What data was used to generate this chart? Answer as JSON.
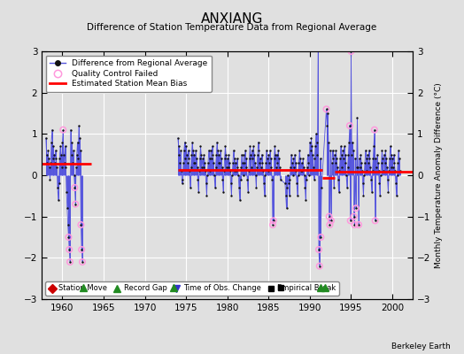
{
  "title": "ANXIANG",
  "subtitle": "Difference of Station Temperature Data from Regional Average",
  "ylabel": "Monthly Temperature Anomaly Difference (°C)",
  "xlim": [
    1957.5,
    2002.5
  ],
  "ylim": [
    -3.0,
    3.0
  ],
  "xticks": [
    1960,
    1965,
    1970,
    1975,
    1980,
    1985,
    1990,
    1995,
    2000
  ],
  "yticks": [
    -3,
    -2,
    -1,
    0,
    1,
    2,
    3
  ],
  "background_color": "#e0e0e0",
  "plot_background": "#e0e0e0",
  "grid_color": "#ffffff",
  "line_color": "#5555dd",
  "bias_color": "#ff0000",
  "marker_color": "#111111",
  "qc_color": "#ff99dd",
  "watermark": "Berkeley Earth",
  "segment_biases": [
    {
      "x_start": 1957.5,
      "x_end": 1963.5,
      "bias": 0.27
    },
    {
      "x_start": 1974.0,
      "x_end": 1991.5,
      "bias": 0.13
    },
    {
      "x_start": 1991.5,
      "x_end": 1993.0,
      "bias": -0.07
    },
    {
      "x_start": 1993.0,
      "x_end": 2002.5,
      "bias": 0.08
    }
  ],
  "record_gaps": [
    1962.5,
    1973.5,
    1991.3,
    1991.8
  ],
  "empirical_breaks": [
    1986.5
  ],
  "station_moves": [],
  "obs_changes": [],
  "segments": [
    [
      [
        1958.0,
        0.9
      ],
      [
        1958.083,
        0.5
      ],
      [
        1958.167,
        0.3
      ],
      [
        1958.25,
        0.6
      ],
      [
        1958.333,
        0.4
      ],
      [
        1958.417,
        0.2
      ],
      [
        1958.5,
        -0.1
      ],
      [
        1958.583,
        0.3
      ],
      [
        1958.667,
        0.8
      ],
      [
        1958.75,
        1.1
      ],
      [
        1958.833,
        0.7
      ],
      [
        1958.917,
        0.4
      ],
      [
        1959.0,
        0.5
      ],
      [
        1959.083,
        0.3
      ],
      [
        1959.167,
        0.6
      ],
      [
        1959.25,
        0.4
      ],
      [
        1959.333,
        0.2
      ],
      [
        1959.417,
        -0.3
      ],
      [
        1959.5,
        -0.6
      ],
      [
        1959.583,
        -0.2
      ],
      [
        1959.667,
        0.4
      ],
      [
        1959.75,
        0.7
      ],
      [
        1959.833,
        0.5
      ],
      [
        1959.917,
        0.2
      ],
      [
        1960.0,
        0.8
      ],
      [
        1960.083,
        1.1
      ],
      [
        1960.167,
        0.5
      ],
      [
        1960.25,
        0.3
      ],
      [
        1960.333,
        0.7
      ],
      [
        1960.417,
        0.2
      ],
      [
        1960.5,
        -0.4
      ],
      [
        1960.583,
        -0.8
      ],
      [
        1960.667,
        -1.2
      ],
      [
        1960.75,
        -1.5
      ],
      [
        1960.833,
        -1.8
      ],
      [
        1960.917,
        -2.1
      ],
      [
        1961.0,
        1.1
      ],
      [
        1961.083,
        0.8
      ],
      [
        1961.167,
        0.5
      ],
      [
        1961.25,
        0.3
      ],
      [
        1961.333,
        0.6
      ],
      [
        1961.417,
        0.0
      ],
      [
        1961.5,
        -0.3
      ],
      [
        1961.583,
        -0.7
      ],
      [
        1961.667,
        0.2
      ],
      [
        1961.75,
        0.5
      ],
      [
        1961.833,
        0.8
      ],
      [
        1961.917,
        0.4
      ],
      [
        1962.0,
        1.2
      ],
      [
        1962.083,
        0.9
      ],
      [
        1962.167,
        0.6
      ],
      [
        1962.25,
        -1.2
      ],
      [
        1962.333,
        -1.8
      ],
      [
        1962.417,
        -2.1
      ]
    ],
    [
      [
        1974.0,
        0.9
      ],
      [
        1974.083,
        0.7
      ],
      [
        1974.167,
        0.5
      ],
      [
        1974.25,
        0.3
      ],
      [
        1974.333,
        0.6
      ],
      [
        1974.417,
        0.1
      ],
      [
        1974.5,
        -0.2
      ],
      [
        1974.583,
        -0.1
      ],
      [
        1974.667,
        0.3
      ],
      [
        1974.75,
        0.6
      ],
      [
        1974.833,
        0.8
      ],
      [
        1974.917,
        0.4
      ],
      [
        1975.0,
        0.7
      ],
      [
        1975.083,
        0.5
      ],
      [
        1975.167,
        0.3
      ],
      [
        1975.25,
        0.6
      ],
      [
        1975.333,
        0.4
      ],
      [
        1975.417,
        0.1
      ],
      [
        1975.5,
        -0.3
      ],
      [
        1975.583,
        0.2
      ],
      [
        1975.667,
        0.5
      ],
      [
        1975.75,
        0.8
      ],
      [
        1975.833,
        0.6
      ],
      [
        1975.917,
        0.3
      ],
      [
        1976.0,
        0.5
      ],
      [
        1976.083,
        0.3
      ],
      [
        1976.167,
        0.6
      ],
      [
        1976.25,
        0.4
      ],
      [
        1976.333,
        0.2
      ],
      [
        1976.417,
        -0.1
      ],
      [
        1976.5,
        -0.4
      ],
      [
        1976.583,
        0.1
      ],
      [
        1976.667,
        0.4
      ],
      [
        1976.75,
        0.7
      ],
      [
        1976.833,
        0.5
      ],
      [
        1976.917,
        0.2
      ],
      [
        1977.0,
        0.4
      ],
      [
        1977.083,
        0.2
      ],
      [
        1977.167,
        0.5
      ],
      [
        1977.25,
        0.3
      ],
      [
        1977.333,
        0.1
      ],
      [
        1977.417,
        -0.2
      ],
      [
        1977.5,
        -0.5
      ],
      [
        1977.583,
        0.0
      ],
      [
        1977.667,
        0.3
      ],
      [
        1977.75,
        0.6
      ],
      [
        1977.833,
        0.4
      ],
      [
        1977.917,
        0.1
      ],
      [
        1978.0,
        0.6
      ],
      [
        1978.083,
        0.4
      ],
      [
        1978.167,
        0.7
      ],
      [
        1978.25,
        0.5
      ],
      [
        1978.333,
        0.3
      ],
      [
        1978.417,
        0.0
      ],
      [
        1978.5,
        -0.3
      ],
      [
        1978.583,
        0.2
      ],
      [
        1978.667,
        0.5
      ],
      [
        1978.75,
        0.8
      ],
      [
        1978.833,
        0.6
      ],
      [
        1978.917,
        0.3
      ],
      [
        1979.0,
        0.5
      ],
      [
        1979.083,
        0.3
      ],
      [
        1979.167,
        0.6
      ],
      [
        1979.25,
        0.4
      ],
      [
        1979.333,
        0.2
      ],
      [
        1979.417,
        -0.1
      ],
      [
        1979.5,
        -0.4
      ],
      [
        1979.583,
        0.1
      ],
      [
        1979.667,
        0.4
      ],
      [
        1979.75,
        0.7
      ],
      [
        1979.833,
        0.5
      ],
      [
        1979.917,
        0.2
      ],
      [
        1980.0,
        0.4
      ],
      [
        1980.083,
        0.2
      ],
      [
        1980.167,
        0.5
      ],
      [
        1980.25,
        0.3
      ],
      [
        1980.333,
        0.1
      ],
      [
        1980.417,
        -0.2
      ],
      [
        1980.5,
        -0.5
      ],
      [
        1980.583,
        0.0
      ],
      [
        1980.667,
        0.3
      ],
      [
        1980.75,
        0.6
      ],
      [
        1980.833,
        0.4
      ],
      [
        1980.917,
        0.1
      ],
      [
        1981.0,
        0.3
      ],
      [
        1981.083,
        0.1
      ],
      [
        1981.167,
        0.4
      ],
      [
        1981.25,
        0.2
      ],
      [
        1981.333,
        0.0
      ],
      [
        1981.417,
        -0.3
      ],
      [
        1981.5,
        -0.6
      ],
      [
        1981.583,
        -0.1
      ],
      [
        1981.667,
        0.2
      ],
      [
        1981.75,
        0.5
      ],
      [
        1981.833,
        0.3
      ],
      [
        1981.917,
        0.0
      ],
      [
        1982.0,
        0.5
      ],
      [
        1982.083,
        0.3
      ],
      [
        1982.167,
        0.6
      ],
      [
        1982.25,
        0.4
      ],
      [
        1982.333,
        0.2
      ],
      [
        1982.417,
        -0.1
      ],
      [
        1982.5,
        -0.4
      ],
      [
        1982.583,
        0.1
      ],
      [
        1982.667,
        0.4
      ],
      [
        1982.75,
        0.7
      ],
      [
        1982.833,
        0.5
      ],
      [
        1982.917,
        0.2
      ],
      [
        1983.0,
        0.6
      ],
      [
        1983.083,
        0.4
      ],
      [
        1983.167,
        0.7
      ],
      [
        1983.25,
        0.5
      ],
      [
        1983.333,
        0.3
      ],
      [
        1983.417,
        0.0
      ],
      [
        1983.5,
        -0.3
      ],
      [
        1983.583,
        0.2
      ],
      [
        1983.667,
        0.5
      ],
      [
        1983.75,
        0.8
      ],
      [
        1983.833,
        0.6
      ],
      [
        1983.917,
        0.3
      ],
      [
        1984.0,
        0.4
      ],
      [
        1984.083,
        0.2
      ],
      [
        1984.167,
        0.5
      ],
      [
        1984.25,
        0.3
      ],
      [
        1984.333,
        0.1
      ],
      [
        1984.417,
        -0.2
      ],
      [
        1984.5,
        -0.5
      ],
      [
        1984.583,
        0.0
      ],
      [
        1984.667,
        0.3
      ],
      [
        1984.75,
        0.6
      ],
      [
        1984.833,
        0.4
      ],
      [
        1984.917,
        0.1
      ],
      [
        1985.0,
        0.5
      ],
      [
        1985.083,
        0.3
      ],
      [
        1985.167,
        0.6
      ],
      [
        1985.25,
        0.4
      ],
      [
        1985.333,
        0.2
      ],
      [
        1985.417,
        -0.1
      ],
      [
        1985.5,
        -1.2
      ],
      [
        1985.583,
        -1.1
      ],
      [
        1985.667,
        0.4
      ],
      [
        1985.75,
        0.7
      ],
      [
        1985.833,
        0.5
      ],
      [
        1985.917,
        0.2
      ],
      [
        1986.0,
        0.5
      ],
      [
        1986.083,
        0.3
      ],
      [
        1986.167,
        0.6
      ],
      [
        1986.25,
        0.4
      ],
      [
        1986.333,
        0.2
      ],
      [
        1986.417,
        -0.1
      ],
      [
        1987.0,
        -0.2
      ],
      [
        1987.083,
        -0.5
      ],
      [
        1987.167,
        -0.8
      ],
      [
        1987.25,
        -0.3
      ],
      [
        1987.333,
        0.0
      ],
      [
        1987.417,
        -0.2
      ],
      [
        1987.5,
        -0.5
      ],
      [
        1987.583,
        -0.1
      ],
      [
        1987.667,
        0.2
      ],
      [
        1987.75,
        0.5
      ],
      [
        1987.833,
        0.3
      ],
      [
        1987.917,
        0.0
      ],
      [
        1988.0,
        0.4
      ],
      [
        1988.083,
        0.2
      ],
      [
        1988.167,
        0.5
      ],
      [
        1988.25,
        0.3
      ],
      [
        1988.333,
        0.1
      ],
      [
        1988.417,
        -0.2
      ],
      [
        1988.5,
        -0.5
      ],
      [
        1988.583,
        0.0
      ],
      [
        1988.667,
        0.3
      ],
      [
        1988.75,
        0.6
      ],
      [
        1988.833,
        0.4
      ],
      [
        1988.917,
        0.1
      ],
      [
        1989.0,
        0.3
      ],
      [
        1989.083,
        0.1
      ],
      [
        1989.167,
        0.4
      ],
      [
        1989.25,
        0.2
      ],
      [
        1989.333,
        0.0
      ],
      [
        1989.417,
        -0.3
      ],
      [
        1989.5,
        -0.6
      ],
      [
        1989.583,
        -0.1
      ],
      [
        1989.667,
        0.2
      ],
      [
        1989.75,
        0.5
      ],
      [
        1989.833,
        0.3
      ],
      [
        1989.917,
        0.0
      ],
      [
        1990.0,
        0.8
      ],
      [
        1990.083,
        0.6
      ],
      [
        1990.167,
        0.9
      ],
      [
        1990.25,
        0.7
      ],
      [
        1990.333,
        0.5
      ],
      [
        1990.417,
        0.2
      ],
      [
        1990.5,
        -0.1
      ],
      [
        1990.583,
        0.4
      ],
      [
        1990.667,
        0.7
      ],
      [
        1990.75,
        1.0
      ],
      [
        1990.833,
        0.8
      ],
      [
        1990.917,
        0.5
      ],
      [
        1991.0,
        3.1
      ],
      [
        1991.083,
        -1.8
      ],
      [
        1991.167,
        -2.2
      ],
      [
        1991.25,
        0.4
      ],
      [
        1991.333,
        -1.5
      ],
      [
        1991.417,
        -0.3
      ],
      [
        1992.0,
        1.6
      ],
      [
        1992.083,
        1.2
      ],
      [
        1992.167,
        1.5
      ],
      [
        1992.25,
        0.8
      ],
      [
        1992.333,
        -1.0
      ],
      [
        1992.417,
        -1.2
      ],
      [
        1992.5,
        0.6
      ],
      [
        1992.583,
        -1.1
      ],
      [
        1992.667,
        0.3
      ],
      [
        1992.75,
        0.6
      ],
      [
        1992.833,
        0.4
      ],
      [
        1992.917,
        -0.3
      ],
      [
        1993.0,
        0.5
      ],
      [
        1993.083,
        0.3
      ],
      [
        1993.167,
        0.6
      ],
      [
        1993.25,
        0.4
      ],
      [
        1993.333,
        0.2
      ],
      [
        1993.417,
        -0.1
      ],
      [
        1993.5,
        -0.4
      ],
      [
        1993.583,
        0.1
      ],
      [
        1993.667,
        0.4
      ],
      [
        1993.75,
        0.7
      ],
      [
        1993.833,
        0.5
      ],
      [
        1993.917,
        0.2
      ],
      [
        1994.0,
        0.6
      ],
      [
        1994.083,
        0.4
      ],
      [
        1994.167,
        0.7
      ],
      [
        1994.25,
        0.5
      ],
      [
        1994.333,
        0.3
      ],
      [
        1994.417,
        0.0
      ],
      [
        1994.5,
        -0.3
      ],
      [
        1994.583,
        0.2
      ],
      [
        1994.667,
        0.5
      ],
      [
        1994.75,
        0.8
      ],
      [
        1994.833,
        1.2
      ],
      [
        1994.917,
        -1.1
      ],
      [
        1995.0,
        3.0
      ],
      [
        1995.083,
        0.5
      ],
      [
        1995.167,
        0.8
      ],
      [
        1995.25,
        0.6
      ],
      [
        1995.333,
        -1.0
      ],
      [
        1995.417,
        -1.2
      ],
      [
        1995.5,
        0.4
      ],
      [
        1995.583,
        -0.8
      ],
      [
        1995.667,
        0.2
      ],
      [
        1995.75,
        1.4
      ],
      [
        1995.833,
        0.2
      ],
      [
        1995.917,
        -1.2
      ],
      [
        1996.0,
        0.4
      ],
      [
        1996.083,
        0.2
      ],
      [
        1996.167,
        0.5
      ],
      [
        1996.25,
        0.3
      ],
      [
        1996.333,
        0.1
      ],
      [
        1996.417,
        -0.2
      ],
      [
        1996.5,
        -0.5
      ],
      [
        1996.583,
        0.0
      ],
      [
        1996.667,
        0.3
      ],
      [
        1996.75,
        0.6
      ],
      [
        1996.833,
        0.4
      ],
      [
        1996.917,
        0.1
      ],
      [
        1997.0,
        0.5
      ],
      [
        1997.083,
        0.3
      ],
      [
        1997.167,
        0.6
      ],
      [
        1997.25,
        0.4
      ],
      [
        1997.333,
        0.2
      ],
      [
        1997.417,
        -0.1
      ],
      [
        1997.5,
        -0.4
      ],
      [
        1997.583,
        0.1
      ],
      [
        1997.667,
        0.4
      ],
      [
        1997.75,
        0.7
      ],
      [
        1997.833,
        1.1
      ],
      [
        1997.917,
        -1.1
      ],
      [
        1998.0,
        0.4
      ],
      [
        1998.083,
        0.2
      ],
      [
        1998.167,
        0.5
      ],
      [
        1998.25,
        0.3
      ],
      [
        1998.333,
        0.1
      ],
      [
        1998.417,
        -0.2
      ],
      [
        1998.5,
        -0.5
      ],
      [
        1998.583,
        0.0
      ],
      [
        1998.667,
        0.3
      ],
      [
        1998.75,
        0.6
      ],
      [
        1998.833,
        0.4
      ],
      [
        1998.917,
        0.1
      ],
      [
        1999.0,
        0.5
      ],
      [
        1999.083,
        0.3
      ],
      [
        1999.167,
        0.6
      ],
      [
        1999.25,
        0.4
      ],
      [
        1999.333,
        0.2
      ],
      [
        1999.417,
        -0.1
      ],
      [
        1999.5,
        -0.4
      ],
      [
        1999.583,
        0.1
      ],
      [
        1999.667,
        0.4
      ],
      [
        1999.75,
        0.7
      ],
      [
        1999.833,
        0.5
      ],
      [
        1999.917,
        0.2
      ],
      [
        2000.0,
        0.4
      ],
      [
        2000.083,
        0.2
      ],
      [
        2000.167,
        0.5
      ],
      [
        2000.25,
        0.3
      ],
      [
        2000.333,
        0.1
      ],
      [
        2000.417,
        -0.2
      ],
      [
        2000.5,
        -0.5
      ],
      [
        2000.583,
        0.0
      ],
      [
        2000.667,
        0.3
      ],
      [
        2000.75,
        0.6
      ],
      [
        2000.833,
        0.4
      ],
      [
        2000.917,
        0.1
      ]
    ]
  ],
  "qc_failed_points": [
    [
      1960.083,
      1.1
    ],
    [
      1960.75,
      -1.5
    ],
    [
      1960.833,
      -1.8
    ],
    [
      1960.917,
      -2.1
    ],
    [
      1961.5,
      -0.3
    ],
    [
      1961.583,
      -0.7
    ],
    [
      1962.25,
      -1.2
    ],
    [
      1962.333,
      -1.8
    ],
    [
      1962.417,
      -2.1
    ],
    [
      1985.5,
      -1.2
    ],
    [
      1985.583,
      -1.1
    ],
    [
      1991.0,
      3.1
    ],
    [
      1991.083,
      -1.8
    ],
    [
      1991.167,
      -2.2
    ],
    [
      1991.333,
      -1.5
    ],
    [
      1992.0,
      1.6
    ],
    [
      1992.333,
      -1.0
    ],
    [
      1992.417,
      -1.2
    ],
    [
      1992.583,
      -1.1
    ],
    [
      1994.833,
      1.2
    ],
    [
      1994.917,
      -1.1
    ],
    [
      1995.0,
      3.0
    ],
    [
      1995.333,
      -1.0
    ],
    [
      1995.417,
      -1.2
    ],
    [
      1995.583,
      -0.8
    ],
    [
      1995.917,
      -1.2
    ],
    [
      1997.833,
      1.1
    ],
    [
      1997.917,
      -1.1
    ]
  ]
}
